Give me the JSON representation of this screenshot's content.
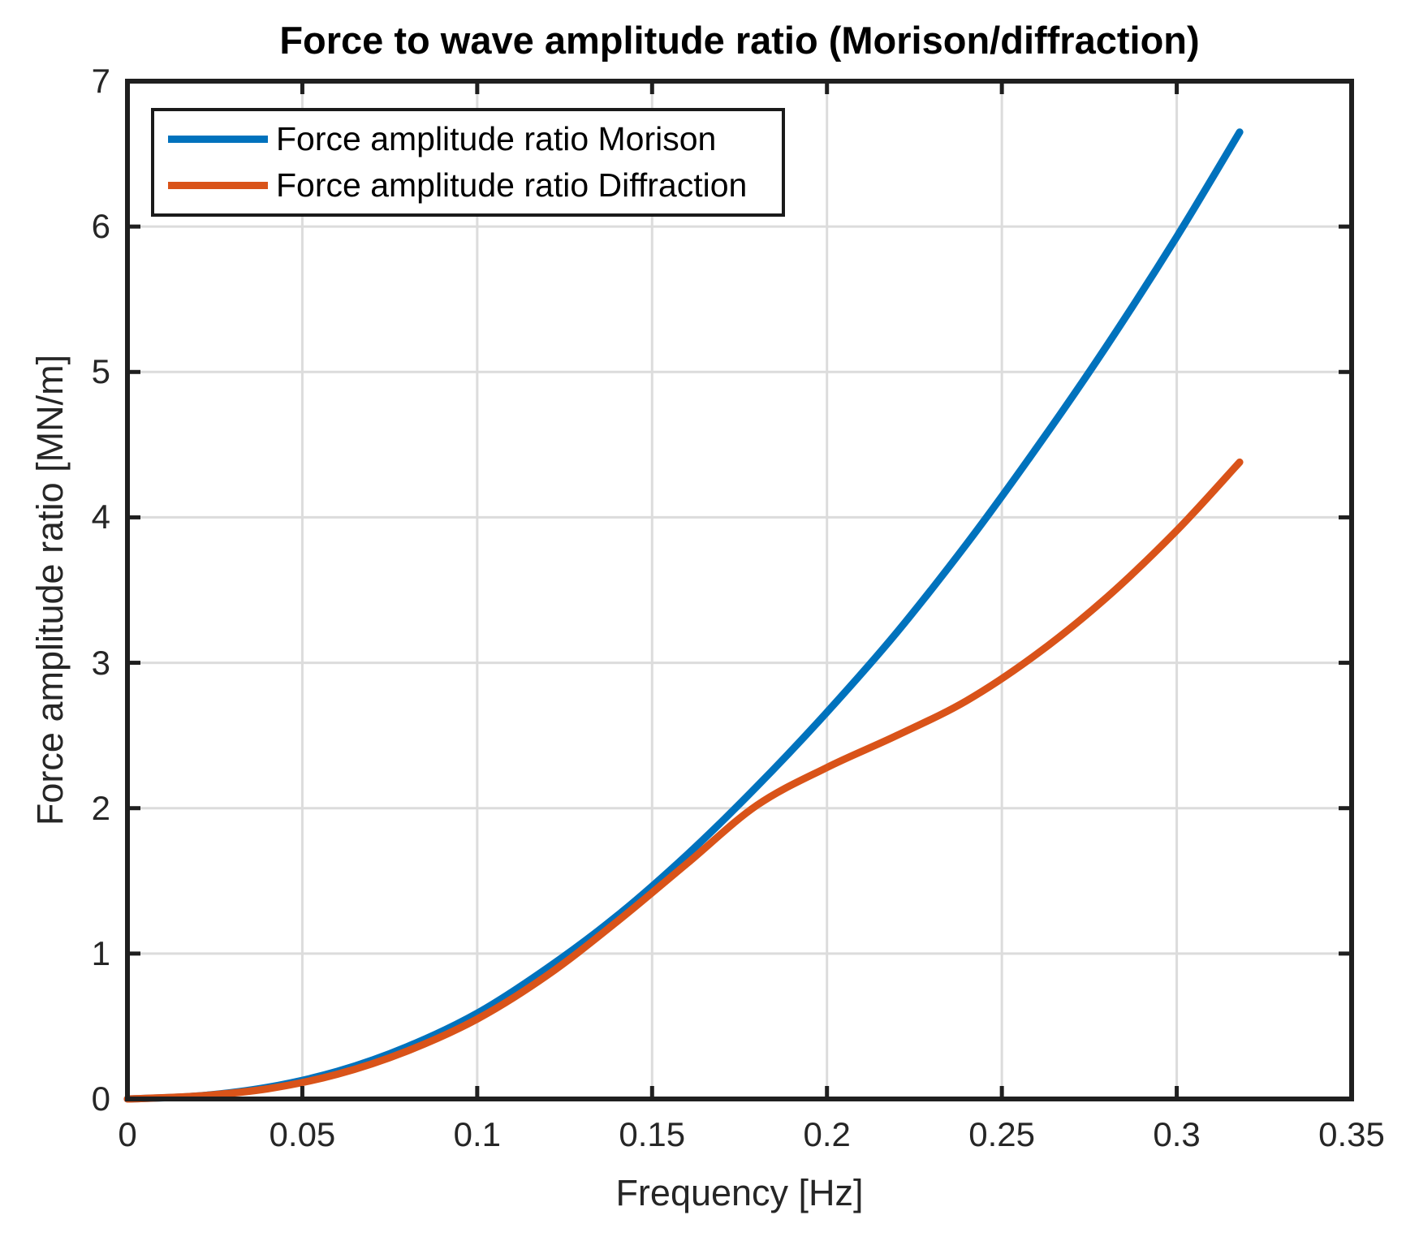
{
  "chart_data": {
    "type": "line",
    "title": "Force to wave amplitude ratio (Morison/diffraction)",
    "xlabel": "Frequency [Hz]",
    "ylabel": "Force amplitude ratio [MN/m]",
    "xlim": [
      0,
      0.35
    ],
    "ylim": [
      0,
      7
    ],
    "x_ticks": [
      0,
      0.05,
      0.1,
      0.15,
      0.2,
      0.25,
      0.3,
      0.35
    ],
    "x_tick_labels": [
      "0",
      "0.05",
      "0.1",
      "0.15",
      "0.2",
      "0.25",
      "0.3",
      "0.35"
    ],
    "y_ticks": [
      0,
      1,
      2,
      3,
      4,
      5,
      6,
      7
    ],
    "y_tick_labels": [
      "0",
      "1",
      "2",
      "3",
      "4",
      "5",
      "6",
      "7"
    ],
    "grid": true,
    "legend_position": "top-left-inside",
    "x": [
      0,
      0.02,
      0.04,
      0.06,
      0.08,
      0.1,
      0.12,
      0.14,
      0.16,
      0.18,
      0.2,
      0.22,
      0.24,
      0.26,
      0.28,
      0.3,
      0.318
    ],
    "series": [
      {
        "name": "Force amplitude ratio Morison",
        "color": "#0072BD",
        "values": [
          0,
          0.02,
          0.08,
          0.19,
          0.36,
          0.59,
          0.9,
          1.26,
          1.68,
          2.15,
          2.66,
          3.21,
          3.82,
          4.48,
          5.18,
          5.93,
          6.65
        ]
      },
      {
        "name": "Force amplitude ratio Diffraction",
        "color": "#D95319",
        "values": [
          0,
          0.02,
          0.07,
          0.17,
          0.33,
          0.55,
          0.85,
          1.22,
          1.62,
          2.02,
          2.28,
          2.5,
          2.74,
          3.06,
          3.45,
          3.91,
          4.38
        ]
      }
    ]
  },
  "colors": {
    "axis": "#1f1f1f",
    "grid": "#dcdcdc",
    "tick_text": "#262626",
    "background": "#ffffff",
    "legend_border": "#1a1a1a"
  }
}
